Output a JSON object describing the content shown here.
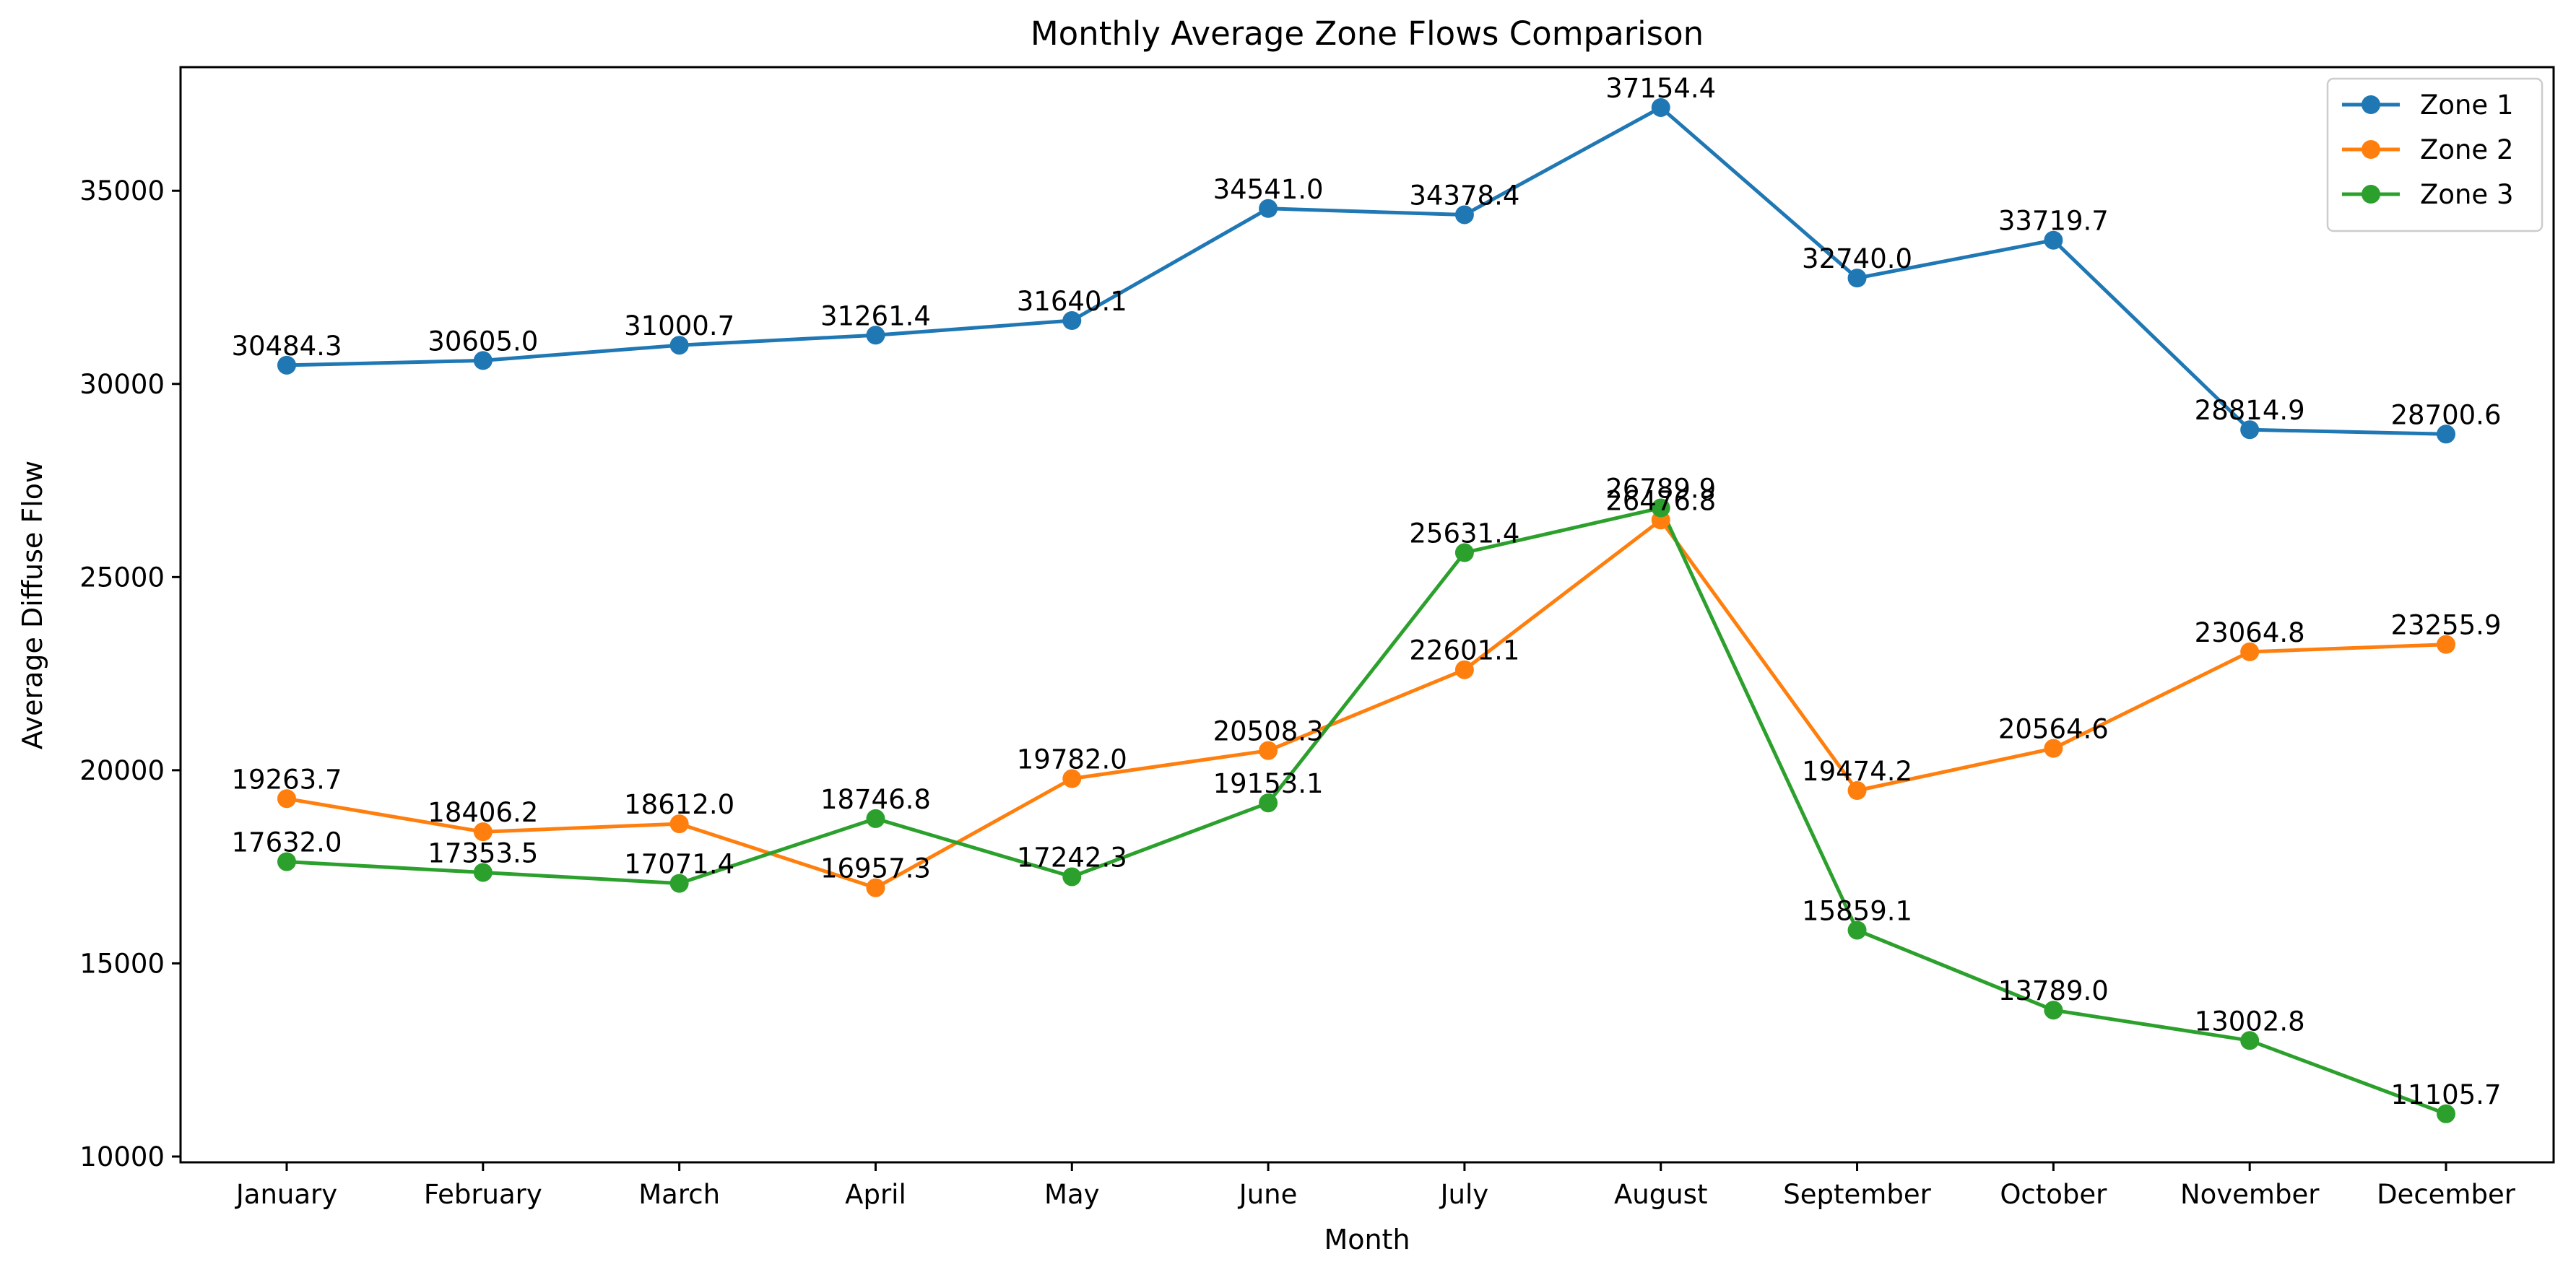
{
  "chart_data": {
    "type": "line",
    "title": "Monthly Average Zone Flows Comparison",
    "xlabel": "Month",
    "ylabel": "Average Diffuse Flow",
    "categories": [
      "January",
      "February",
      "March",
      "April",
      "May",
      "June",
      "July",
      "August",
      "September",
      "October",
      "November",
      "December"
    ],
    "ylim": [
      9850,
      38200
    ],
    "yticks": [
      10000,
      15000,
      20000,
      25000,
      30000,
      35000
    ],
    "grid": false,
    "legend_position": "top-right",
    "markers": "circle",
    "series": [
      {
        "name": "Zone 1",
        "color": "#1f77b4",
        "values": [
          30484.3,
          30605.0,
          31000.7,
          31261.4,
          31640.1,
          34541.0,
          34378.4,
          37154.4,
          32740.0,
          33719.7,
          28814.9,
          28700.6
        ],
        "labels": [
          "30484.3",
          "30605.0",
          "31000.7",
          "31261.4",
          "31640.1",
          "34541.0",
          "34378.4",
          "37154.4",
          "32740.0",
          "33719.7",
          "28814.9",
          "28700.6"
        ]
      },
      {
        "name": "Zone 2",
        "color": "#ff7f0e",
        "values": [
          19263.7,
          18406.2,
          18612.0,
          16957.3,
          19782.0,
          20508.3,
          22601.1,
          26476.8,
          19474.2,
          20564.6,
          23064.8,
          23255.9
        ],
        "labels": [
          "19263.7",
          "18406.2",
          "18612.0",
          "16957.3",
          "19782.0",
          "20508.3",
          "22601.1",
          "26476.8",
          "19474.2",
          "20564.6",
          "23064.8",
          "23255.9"
        ]
      },
      {
        "name": "Zone 3",
        "color": "#2ca02c",
        "values": [
          17632.0,
          17353.5,
          17071.4,
          18746.8,
          17242.3,
          19153.1,
          25631.4,
          26789.9,
          15859.1,
          13789.0,
          13002.8,
          11105.7
        ],
        "labels": [
          "17632.0",
          "17353.5",
          "17071.4",
          "18746.8",
          "17242.3",
          "19153.1",
          "25631.4",
          "26789.9",
          "15859.1",
          "13789.0",
          "13002.8",
          "11105.7"
        ]
      }
    ]
  }
}
